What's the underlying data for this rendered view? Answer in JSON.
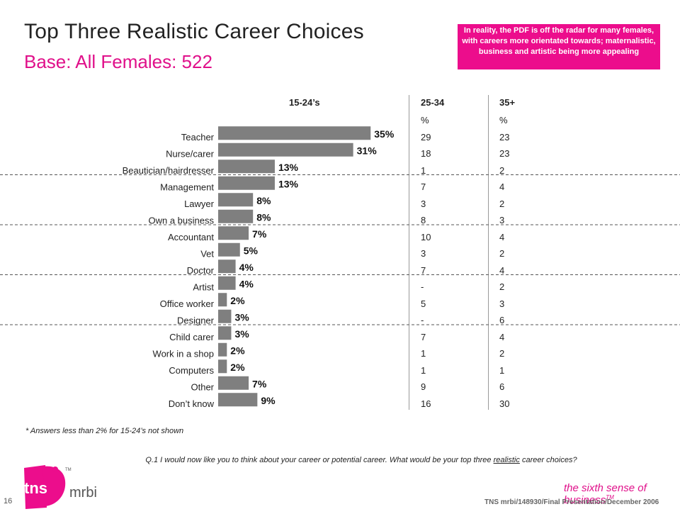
{
  "slide": {
    "title": "Top Three Realistic Career Choices",
    "subtitle": "Base:  All Females:  522",
    "callout": "In reality, the PDF is off the radar for many females, with careers more orientated towards; maternalistic, business and artistic being more appealing",
    "footnote": "* Answers less than 2% for 15-24’s not shown",
    "question_prefix": "Q.1  I would now like you to think about your career or potential career.  What would be your top three ",
    "question_underlined": "realistic",
    "question_suffix": " career choices?",
    "page_number": "16",
    "brand_tns": "tns",
    "brand_mrbi": "mrbi",
    "brand_tm": "TM",
    "tagline": "the sixth sense of business",
    "tagline_tm": "TM",
    "reference": "TNS mrbi/148930/Final Presentation/December 2006"
  },
  "columns": {
    "c1": "15-24’s",
    "c2": "25-34",
    "c3": "35+",
    "pct_row_c2": "%",
    "pct_row_c3": "%"
  },
  "colors": {
    "bar": "#7f7f7f",
    "accent": "#ec0d8c",
    "text": "#222222"
  },
  "chart_data": {
    "type": "bar",
    "orientation": "horizontal",
    "series": [
      {
        "name": "15-24’s",
        "values": [
          35,
          31,
          13,
          13,
          8,
          8,
          7,
          5,
          4,
          4,
          2,
          3,
          3,
          2,
          2,
          7,
          9
        ]
      }
    ],
    "categories": [
      "Teacher",
      "Nurse/carer",
      "Beautician/hairdresser",
      "Management",
      "Lawyer",
      "Own a business",
      "Accountant",
      "Vet",
      "Doctor",
      "Artist",
      "Office worker",
      "Designer",
      "Child carer",
      "Work in a shop",
      "Computers",
      "Other",
      "Don’t know"
    ],
    "value_labels": [
      "35%",
      "31%",
      "13%",
      "13%",
      "8%",
      "8%",
      "7%",
      "5%",
      "4%",
      "4%",
      "2%",
      "3%",
      "3%",
      "2%",
      "2%",
      "7%",
      "9%"
    ],
    "table": {
      "c2": [
        "29",
        "18",
        "1",
        "7",
        "3",
        "8",
        "10",
        "3",
        "7",
        "-",
        "5",
        "-",
        "7",
        "1",
        "1",
        "9",
        "16"
      ],
      "c3": [
        "23",
        "23",
        "2",
        "4",
        "2",
        "3",
        "4",
        "2",
        "4",
        "2",
        "3",
        "6",
        "4",
        "2",
        "1",
        "6",
        "30"
      ]
    },
    "group_separators_after": [
      2,
      5,
      8,
      11
    ],
    "grid": false
  }
}
